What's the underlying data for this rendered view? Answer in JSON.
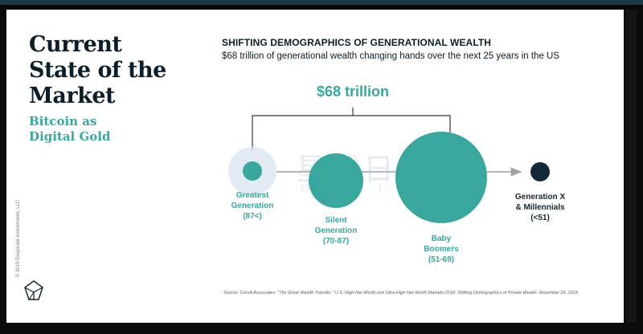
{
  "slide": {
    "title_lines": [
      "Current",
      "State of the",
      "Market"
    ],
    "subtitle_lines": [
      "Bitcoin as",
      "Digital Gold"
    ],
    "copyright": "© 2019 Grayscale Investments, LLC",
    "logo_icon": "grayscale-logo-icon"
  },
  "chart": {
    "title": "SHIFTING DEMOGRAPHICS OF GENERATIONAL WEALTH",
    "subtitle": "$68 trillion of generational wealth changing hands over the next 25 years in the US",
    "total_label": "$68 trillion",
    "source": "Source: Cerulli Associates: \"The Great Wealth Transfer.\" U.S. High-Net-Worth and Ultra-High-Net-Worth Markets 2018: Shifting Demographics of Private Wealth. November 26, 2018"
  },
  "watermark": {
    "text": "星球日报",
    "sub": "ODAILY"
  },
  "generations": [
    {
      "lines": [
        "Greatest",
        "Generation",
        "(87<)"
      ]
    },
    {
      "lines": [
        "Silent",
        "Generation",
        "(70-87)"
      ]
    },
    {
      "lines": [
        "Baby",
        "Boomers",
        "(51-69)"
      ]
    },
    {
      "lines": [
        "Generation X",
        "& Millennials",
        "(<51)"
      ]
    }
  ],
  "colors": {
    "teal": "#3aa79f",
    "dark_navy": "#13293a",
    "title": "#0c1e2a"
  }
}
